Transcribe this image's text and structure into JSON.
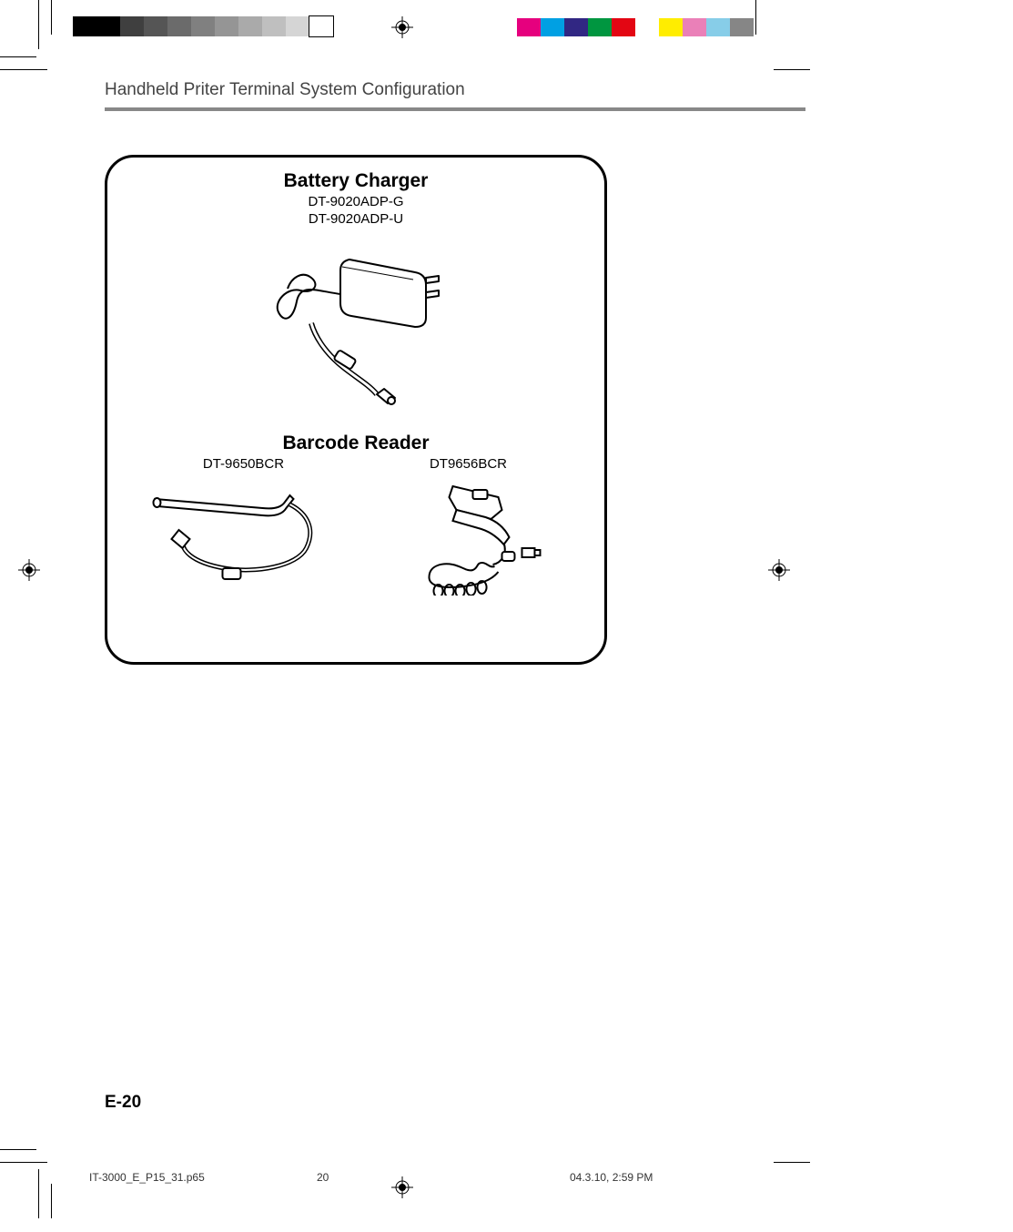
{
  "colorbars_left": [
    "#000000",
    "#000000",
    "#3f3f3f",
    "#555555",
    "#6b6b6b",
    "#808080",
    "#959595",
    "#aaaaaa",
    "#bfbfbf",
    "#d5d5d5",
    "#ffffff"
  ],
  "colorbars_right": [
    "#e6007e",
    "#00a0e3",
    "#312783",
    "#009640",
    "#e30613",
    "#ffffff",
    "#ffed00",
    "#ea80b8",
    "#87cde8",
    "#868686"
  ],
  "header_title": "Handheld Priter Terminal System Configuration",
  "charger": {
    "title": "Battery Charger",
    "model1": "DT-9020ADP-G",
    "model2": "DT-9020ADP-U"
  },
  "barcode": {
    "title": "Barcode Reader",
    "left_model": "DT-9650BCR",
    "right_model": "DT9656BCR"
  },
  "page_number": "E-20",
  "footer": {
    "filename": "IT-3000_E_P15_31.p65",
    "page": "20",
    "timestamp": "04.3.10, 2:59 PM"
  }
}
